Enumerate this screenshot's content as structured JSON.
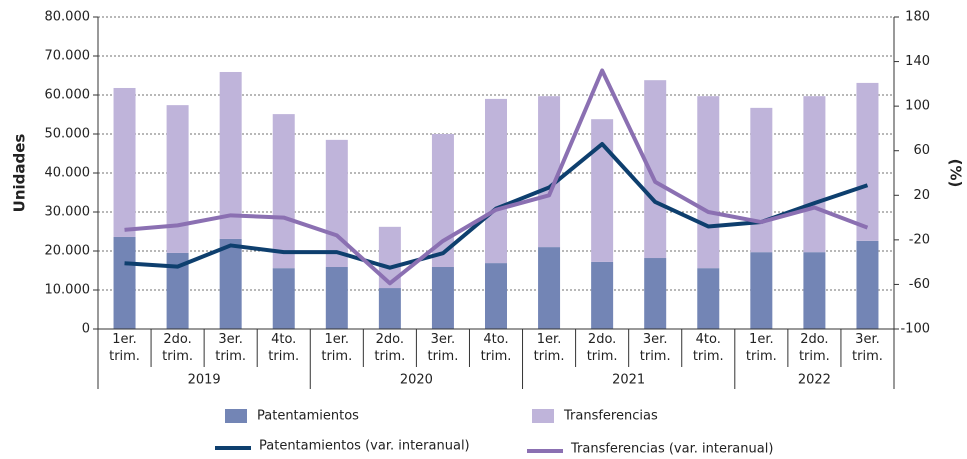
{
  "chart_data": {
    "type": "bar-line",
    "y_label": "Unidades",
    "y2_label": "(%)",
    "groups": [
      {
        "label": "2019",
        "categories": [
          "1er. trim.",
          "2do. trim.",
          "3er. trim.",
          "4to. trim."
        ]
      },
      {
        "label": "2020",
        "categories": [
          "1er. trim.",
          "2do. trim.",
          "3er. trim.",
          "4to. trim."
        ]
      },
      {
        "label": "2021",
        "categories": [
          "1er. trim.",
          "2do. trim.",
          "3er. trim.",
          "4to. trim."
        ]
      },
      {
        "label": "2022",
        "categories": [
          "1er. trim.",
          "2do. trim.",
          "3er. trim."
        ]
      }
    ],
    "series": [
      {
        "name": "Patentamientos",
        "kind": "bar",
        "color": "#7385b5",
        "values": [
          23600,
          19500,
          23100,
          15600,
          15900,
          10500,
          15900,
          16900,
          21000,
          17200,
          18200,
          15600,
          19700,
          19700,
          22600
        ]
      },
      {
        "name": "Transferencias",
        "kind": "bar",
        "color": "#bfb4da",
        "values": [
          38200,
          37900,
          42800,
          39500,
          32600,
          15700,
          34100,
          42100,
          38700,
          36600,
          45600,
          44100,
          37000,
          40000,
          40500
        ]
      },
      {
        "name": "Patentamientos (var. interanual)",
        "kind": "line",
        "axis": "y2",
        "color": "#0e3f6e",
        "values": [
          -41,
          -44,
          -25,
          -31,
          -31,
          -45,
          -32,
          8,
          27,
          66,
          14,
          -8,
          -4,
          13,
          29
        ]
      },
      {
        "name": "Transferencias (var. interanual)",
        "kind": "line",
        "axis": "y2",
        "color": "#8b70b2",
        "values": [
          -11,
          -7,
          2,
          0,
          -16,
          -59,
          -21,
          7,
          20,
          132,
          32,
          5,
          -4,
          9,
          -9
        ]
      }
    ],
    "ylim": [
      0,
      80000
    ],
    "yticks": [
      0,
      {
        "value": 10000,
        "label": "10.000"
      },
      {
        "value": 20000,
        "label": "20.000"
      },
      {
        "value": 30000,
        "label": "30.000"
      },
      {
        "value": 40000,
        "label": "40.000"
      },
      {
        "value": 50000,
        "label": "50.000"
      },
      {
        "value": 60000,
        "label": "60.000"
      },
      {
        "value": 70000,
        "label": "70.000"
      },
      {
        "value": 80000,
        "label": "80.000"
      }
    ],
    "y2lim": [
      -100,
      180
    ],
    "y2ticks": [
      -100,
      -60,
      -20,
      20,
      60,
      100,
      140,
      180
    ],
    "grid": true
  }
}
